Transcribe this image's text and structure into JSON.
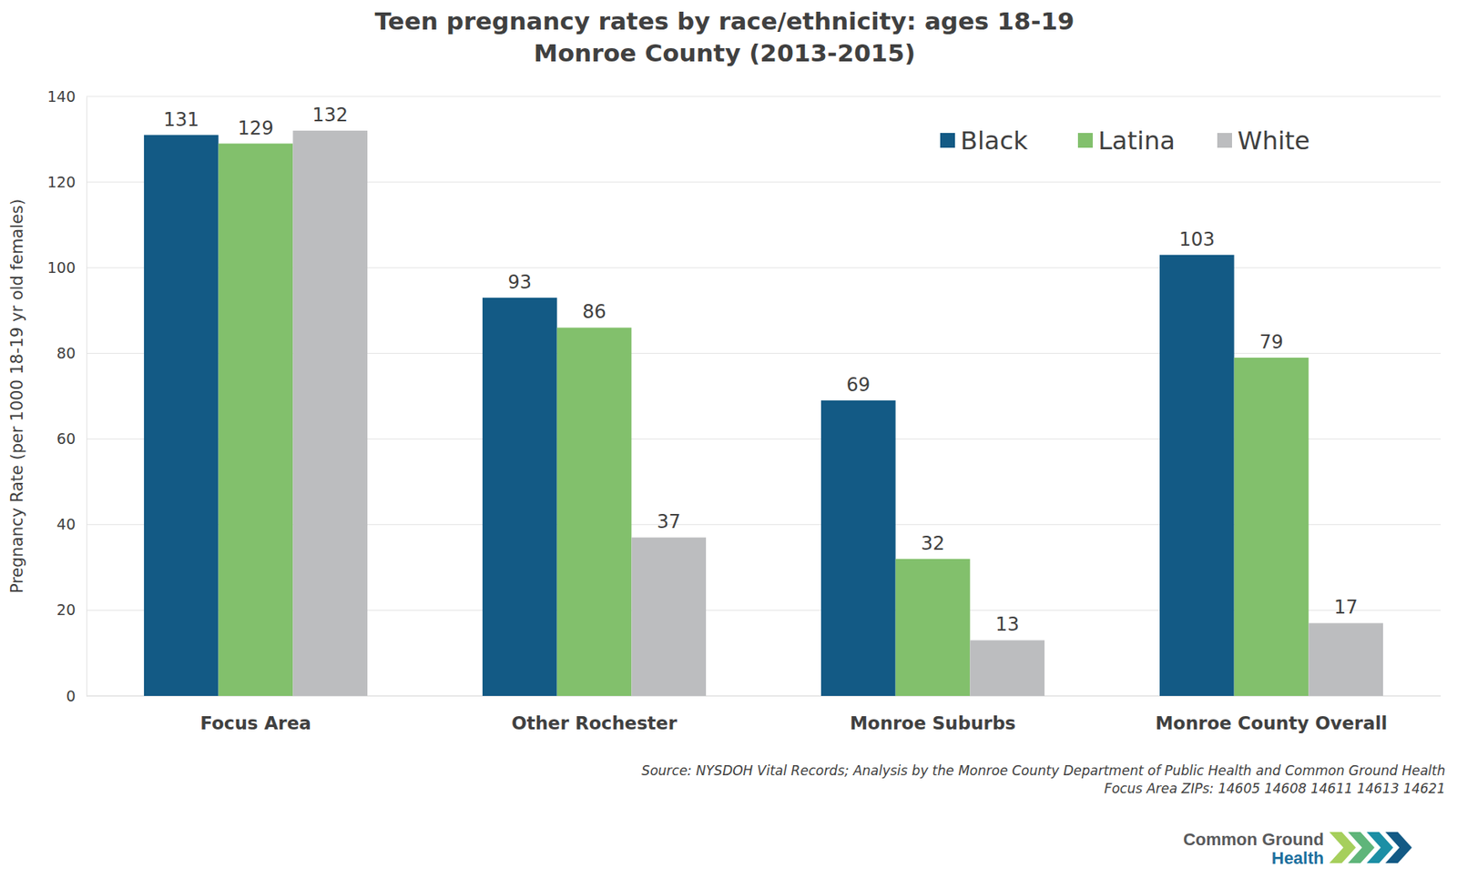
{
  "chart_data": {
    "type": "bar",
    "title": "Teen pregnancy rates by race/ethnicity: ages 18-19",
    "subtitle": "Monroe County (2013-2015)",
    "y_label": "Pregnancy Rate (per 1000 18-19 yr old females)",
    "categories": [
      "Focus Area",
      "Other Rochester",
      "Monroe Suburbs",
      "Monroe County Overall"
    ],
    "series": [
      {
        "name": "Black",
        "color": "#135a85",
        "values": [
          131,
          93,
          69,
          103
        ]
      },
      {
        "name": "Latina",
        "color": "#82c06c",
        "values": [
          129,
          86,
          32,
          79
        ]
      },
      {
        "name": "White",
        "color": "#bcbdbf",
        "values": [
          132,
          37,
          13,
          17
        ]
      }
    ],
    "ylim": [
      0,
      140
    ],
    "yticks": [
      0,
      20,
      40,
      60,
      80,
      100,
      120,
      140
    ],
    "grid": true,
    "legend": "top-right",
    "data_labels": true,
    "annotations": [
      "Source: NYSDOH Vital Records; Analysis by the Monroe County Department of Public Health and Common Ground Health",
      "Focus Area ZIPs: 14605 14608 14611 14613 14621",
      "Common Ground",
      "Health"
    ]
  }
}
